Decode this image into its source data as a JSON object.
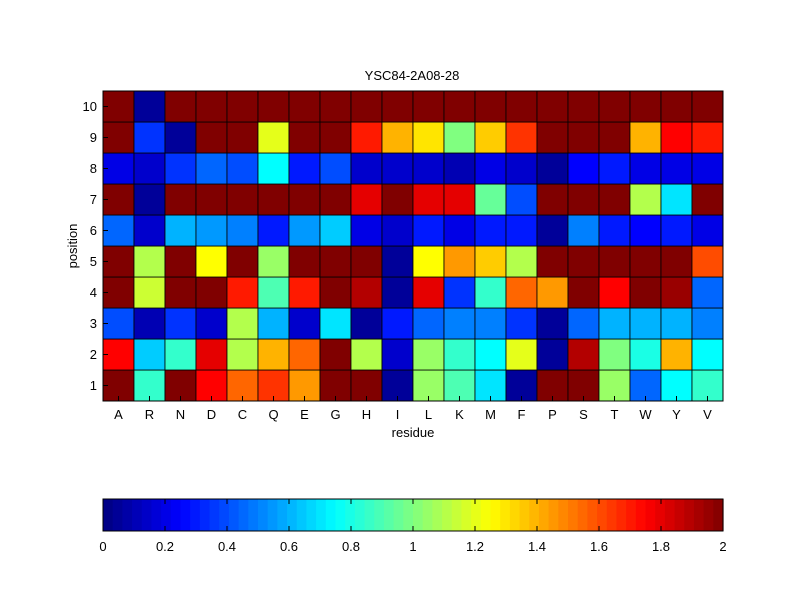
{
  "chart_data": {
    "type": "heatmap",
    "title": "YSC84-2A08-28",
    "xlabel": "residue",
    "ylabel": "position",
    "x_categories": [
      "A",
      "R",
      "N",
      "D",
      "C",
      "Q",
      "E",
      "G",
      "H",
      "I",
      "L",
      "K",
      "M",
      "F",
      "P",
      "S",
      "T",
      "W",
      "Y",
      "V"
    ],
    "y_categories": [
      1,
      2,
      3,
      4,
      5,
      6,
      7,
      8,
      9,
      10
    ],
    "colormap": "jet",
    "clim": [
      0,
      2
    ],
    "colorbar_ticks": [
      "0",
      "0.2",
      "0.4",
      "0.6",
      "0.8",
      "1",
      "1.2",
      "1.4",
      "1.6",
      "1.8",
      "2"
    ],
    "colorbar_position": "bottom",
    "values": [
      [
        2.0,
        0.85,
        2.0,
        1.75,
        1.55,
        1.65,
        1.45,
        2.0,
        2.0,
        0.05,
        1.05,
        0.9,
        0.7,
        0.05,
        2.0,
        2.0,
        1.05,
        0.45,
        0.75,
        0.85
      ],
      [
        1.75,
        0.65,
        0.85,
        1.8,
        1.1,
        1.4,
        1.55,
        2.0,
        1.1,
        0.15,
        1.05,
        0.85,
        0.75,
        1.2,
        0.05,
        1.9,
        1.0,
        0.8,
        1.4,
        0.75
      ],
      [
        0.4,
        0.1,
        0.35,
        0.15,
        1.1,
        0.6,
        0.15,
        0.7,
        0.05,
        0.3,
        0.45,
        0.5,
        0.5,
        0.35,
        0.05,
        0.45,
        0.6,
        0.6,
        0.6,
        0.5
      ],
      [
        2.0,
        1.15,
        2.0,
        2.0,
        1.7,
        0.9,
        1.7,
        2.0,
        1.9,
        0.05,
        1.8,
        0.35,
        0.85,
        1.55,
        1.45,
        2.0,
        1.75,
        2.0,
        1.95,
        0.45
      ],
      [
        2.0,
        1.1,
        2.0,
        1.25,
        2.0,
        1.05,
        2.0,
        2.0,
        2.0,
        0.05,
        1.25,
        1.45,
        1.35,
        1.1,
        2.0,
        2.0,
        2.0,
        2.0,
        2.0,
        1.6
      ],
      [
        0.45,
        0.15,
        0.6,
        0.55,
        0.5,
        0.3,
        0.55,
        0.65,
        0.2,
        0.15,
        0.3,
        0.2,
        0.3,
        0.3,
        0.05,
        0.5,
        0.3,
        0.25,
        0.3,
        0.2
      ],
      [
        2.0,
        0.05,
        2.0,
        2.0,
        2.0,
        2.0,
        2.0,
        2.0,
        1.8,
        2.0,
        1.8,
        1.8,
        0.95,
        0.4,
        2.0,
        2.0,
        2.0,
        1.1,
        0.7,
        2.0
      ],
      [
        0.2,
        0.15,
        0.35,
        0.45,
        0.4,
        0.75,
        0.3,
        0.4,
        0.15,
        0.15,
        0.15,
        0.1,
        0.2,
        0.15,
        0.05,
        0.25,
        0.3,
        0.2,
        0.2,
        0.2
      ],
      [
        2.0,
        0.35,
        0.05,
        2.0,
        2.0,
        1.2,
        2.0,
        2.0,
        1.7,
        1.4,
        1.3,
        1.0,
        1.35,
        1.65,
        2.0,
        2.0,
        2.0,
        1.4,
        1.75,
        1.7
      ],
      [
        2.0,
        0.05,
        2.0,
        2.0,
        2.0,
        2.0,
        2.0,
        2.0,
        2.0,
        2.0,
        2.0,
        2.0,
        2.0,
        2.0,
        2.0,
        2.0,
        2.0,
        2.0,
        2.0,
        2.0
      ]
    ]
  }
}
